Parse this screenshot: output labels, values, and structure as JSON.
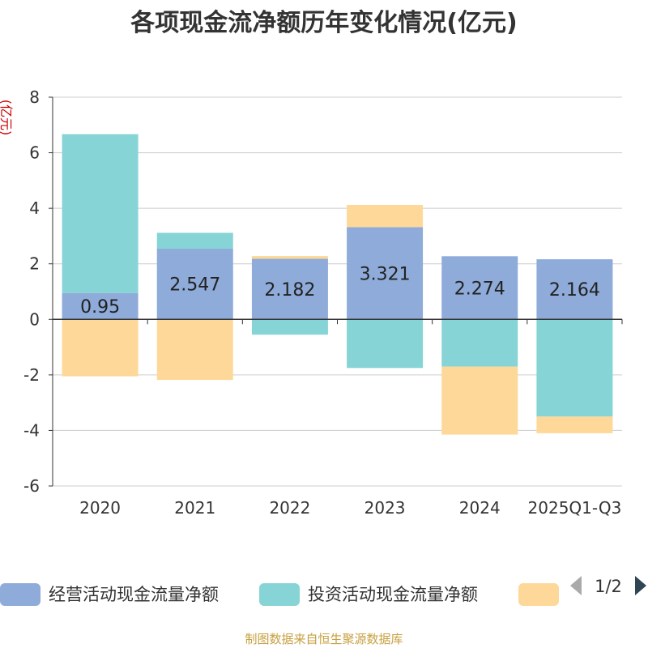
{
  "chart_data": {
    "type": "bar",
    "stacked": true,
    "title": "各项现金流净额历年变化情况(亿元)",
    "ylabel": "(亿元)",
    "xlabel": "",
    "ylim": [
      -6,
      8
    ],
    "yticks": [
      -6,
      -4,
      -2,
      0,
      2,
      4,
      6,
      8
    ],
    "categories": [
      "2020",
      "2021",
      "2022",
      "2023",
      "2024",
      "2025Q1-Q3"
    ],
    "series": [
      {
        "name": "经营活动现金流量净额",
        "color": "#8eabd9",
        "values": [
          0.95,
          2.547,
          2.182,
          3.321,
          2.274,
          2.164
        ],
        "labels": [
          "0.95",
          "2.547",
          "2.182",
          "3.321",
          "2.274",
          "2.164"
        ]
      },
      {
        "name": "投资活动现金流量净额",
        "color": "#86d4d6",
        "values": [
          5.72,
          0.57,
          -0.55,
          -1.75,
          -1.7,
          -3.5
        ]
      },
      {
        "name": "",
        "color": "#fed899",
        "values": [
          -2.05,
          -2.18,
          0.1,
          0.8,
          -2.45,
          -0.6
        ]
      }
    ],
    "legend": {
      "position": "bottom",
      "page": "1/2"
    },
    "grid": true
  },
  "source": "制图数据来自恒生聚源数据库",
  "colors": {
    "axis": "#333333",
    "grid": "#cccccc",
    "arrow_disabled": "#aaaaaa",
    "arrow_active": "#2f4554"
  }
}
